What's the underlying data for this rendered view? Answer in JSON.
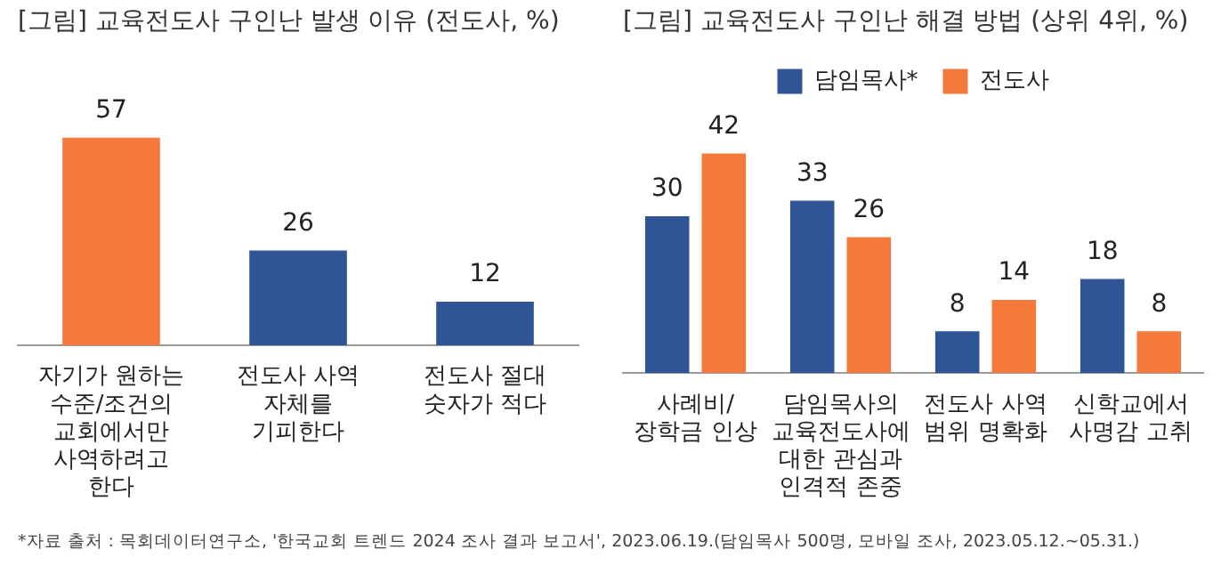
{
  "chart_data": [
    {
      "type": "bar",
      "title": "[그림] 교육전도사 구인난 발생 이유 (전도사, %)",
      "categories": [
        "자기가 원하는 수준/조건의 교회에서만 사역하려고 한다",
        "전도사 사역 자체를 기피한다",
        "전도사 절대 숫자가 적다"
      ],
      "values": [
        57,
        26,
        12
      ],
      "colors": [
        "#f5793a",
        "#2f5597",
        "#2f5597"
      ],
      "data_labels": true,
      "tick_labels": "x",
      "grid": false,
      "legend": false
    },
    {
      "type": "bar",
      "title": "[그림] 교육전도사 구인난 해결 방법 (상위 4위, %)",
      "categories": [
        "사례비/ 장학금 인상",
        "담임목사의 교육전도사에 대한 관심과 인격적 존중",
        "전도사 사역 범위 명확화",
        "신학교에서 사명감 고취"
      ],
      "series": [
        {
          "name": "담임목사*",
          "color": "#2f5597",
          "values": [
            30,
            33,
            8,
            18
          ]
        },
        {
          "name": "전도사",
          "color": "#f5793a",
          "values": [
            42,
            26,
            14,
            8
          ]
        }
      ],
      "data_labels": true,
      "tick_labels": "x",
      "grid": false,
      "legend": "top",
      "annotations": [
        "*자료 출처 : 목회데이터연구소, '한국교회 트렌드 2024 조사 결과 보고서', 2023.06.19.(담임목사 500명, 모바일 조사, 2023.05.12.~05.31.)"
      ]
    }
  ]
}
